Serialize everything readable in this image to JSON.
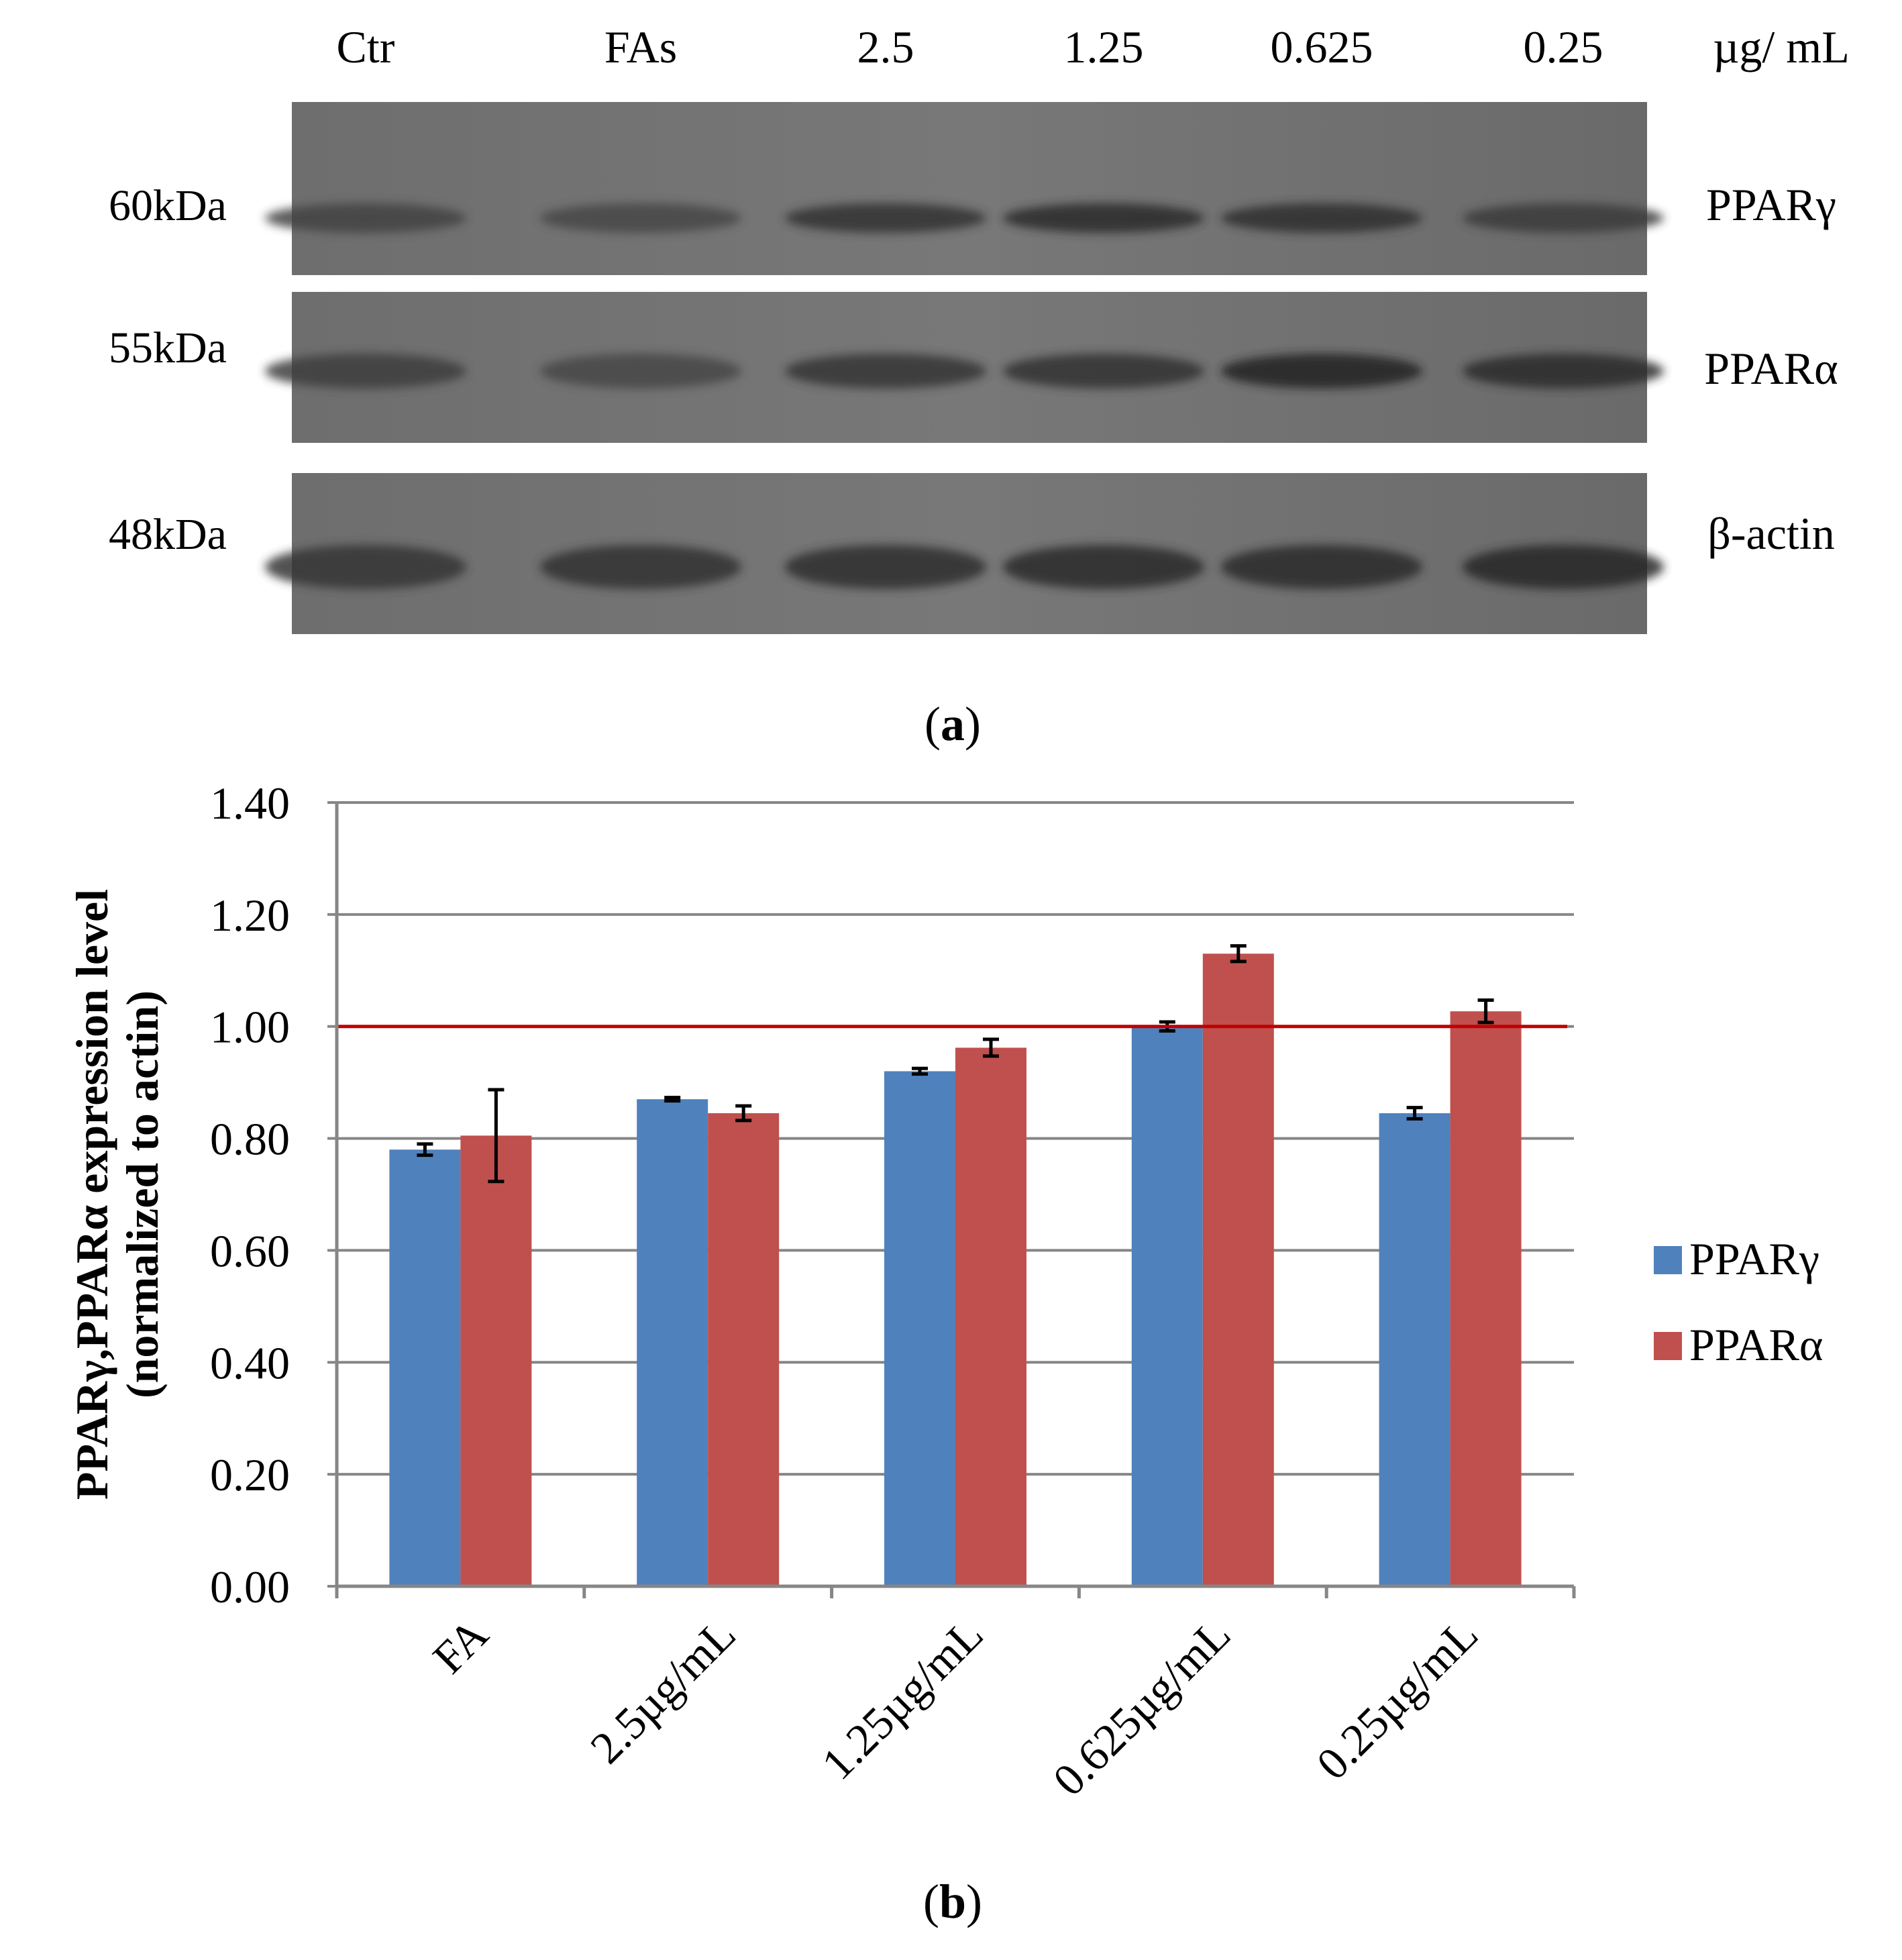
{
  "panel_a": {
    "caption_open": "(",
    "caption_letter": "a",
    "caption_close": ")",
    "lanes": [
      "Ctr",
      "FAs",
      "2.5",
      "1.25",
      "0.625",
      "0.25"
    ],
    "unit": "µg/ mL",
    "blots": [
      {
        "marker": "60kDa",
        "protein": "PPARγ",
        "bands": [
          0.55,
          0.5,
          0.75,
          0.85,
          0.8,
          0.65
        ]
      },
      {
        "marker": "55kDa",
        "protein": "PPARα",
        "bands": [
          0.6,
          0.5,
          0.7,
          0.75,
          0.95,
          0.85
        ]
      },
      {
        "marker": "48kDa",
        "protein": "β-actin",
        "bands": [
          0.7,
          0.75,
          0.8,
          0.85,
          0.85,
          0.9
        ]
      }
    ]
  },
  "panel_b": {
    "caption_open": "(",
    "caption_letter": "b",
    "caption_close": ")"
  },
  "colors": {
    "series_1": "#4f81bd",
    "series_2": "#c0504d",
    "reference_line": "#c00000",
    "grid": "#868686"
  },
  "chart_data": {
    "type": "bar",
    "title": "",
    "xlabel": "",
    "ylabel": "PPARγ,PPARα expression level",
    "ylabel_line2": "(normalized to actin)",
    "categories": [
      "FA",
      "2.5µg/mL",
      "1.25µg/mL",
      "0.625µg/mL",
      "0.25µg/mL"
    ],
    "series": [
      {
        "name": "PPARγ",
        "values": [
          0.78,
          0.87,
          0.92,
          1.0,
          0.845
        ],
        "errors": [
          0.01,
          0.003,
          0.005,
          0.008,
          0.01
        ]
      },
      {
        "name": "PPARα",
        "values": [
          0.805,
          0.845,
          0.962,
          1.13,
          1.027
        ],
        "errors": [
          0.082,
          0.013,
          0.015,
          0.014,
          0.02
        ]
      }
    ],
    "reference_line": 1.0,
    "ylim": [
      0,
      1.4
    ],
    "yticks": [
      "0.00",
      "0.20",
      "0.40",
      "0.60",
      "0.80",
      "1.00",
      "1.20",
      "1.40"
    ],
    "grid": true,
    "legend": "right"
  }
}
